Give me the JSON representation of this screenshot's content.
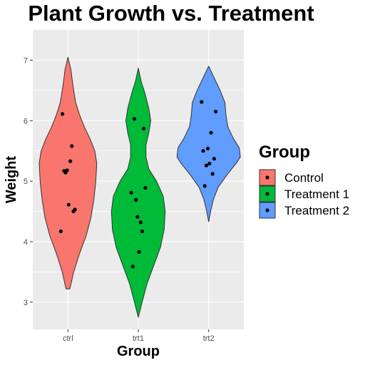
{
  "chart_data": {
    "type": "violin",
    "title": "Plant Growth vs. Treatment",
    "xlabel": "Group",
    "ylabel": "Weight",
    "ylim": [
      2.55,
      7.5
    ],
    "yticks": [
      3,
      4,
      5,
      6,
      7
    ],
    "grid": true,
    "legend": {
      "title": "Group",
      "placement": "right",
      "entries": [
        "Control",
        "Treatment 1",
        "Treatment 2"
      ]
    },
    "categories": [
      "ctrl",
      "trt1",
      "trt2"
    ],
    "series": [
      {
        "category": "ctrl",
        "name": "Control",
        "color": "#F8766D",
        "range": [
          3.22,
          7.05
        ],
        "profile": [
          [
            3.22,
            0.02
          ],
          [
            3.5,
            0.06
          ],
          [
            3.8,
            0.12
          ],
          [
            4.1,
            0.19
          ],
          [
            4.4,
            0.24
          ],
          [
            4.7,
            0.27
          ],
          [
            5.0,
            0.29
          ],
          [
            5.3,
            0.3
          ],
          [
            5.5,
            0.28
          ],
          [
            5.7,
            0.23
          ],
          [
            5.9,
            0.17
          ],
          [
            6.1,
            0.12
          ],
          [
            6.3,
            0.08
          ],
          [
            6.6,
            0.05
          ],
          [
            6.85,
            0.03
          ],
          [
            7.05,
            0.0
          ]
        ],
        "values": [
          4.17,
          5.58,
          5.18,
          6.11,
          4.5,
          4.61,
          5.17,
          4.53,
          5.33,
          5.14
        ]
      },
      {
        "category": "trt1",
        "name": "Treatment 1",
        "color": "#00BA38",
        "range": [
          2.75,
          6.87
        ],
        "profile": [
          [
            2.75,
            0.0
          ],
          [
            3.0,
            0.04
          ],
          [
            3.3,
            0.09
          ],
          [
            3.6,
            0.16
          ],
          [
            3.9,
            0.23
          ],
          [
            4.2,
            0.27
          ],
          [
            4.5,
            0.28
          ],
          [
            4.75,
            0.26
          ],
          [
            5.0,
            0.19
          ],
          [
            5.2,
            0.11
          ],
          [
            5.4,
            0.08
          ],
          [
            5.6,
            0.08
          ],
          [
            5.8,
            0.11
          ],
          [
            6.0,
            0.13
          ],
          [
            6.2,
            0.11
          ],
          [
            6.45,
            0.07
          ],
          [
            6.65,
            0.03
          ],
          [
            6.87,
            0.0
          ]
        ],
        "values": [
          4.81,
          4.17,
          4.41,
          3.59,
          5.87,
          3.83,
          6.03,
          4.89,
          4.32,
          4.69
        ]
      },
      {
        "category": "trt2",
        "name": "Treatment 2",
        "color": "#619CFF",
        "range": [
          4.33,
          6.9
        ],
        "profile": [
          [
            4.33,
            0.0
          ],
          [
            4.5,
            0.02
          ],
          [
            4.7,
            0.05
          ],
          [
            4.9,
            0.1
          ],
          [
            5.1,
            0.19
          ],
          [
            5.3,
            0.29
          ],
          [
            5.4,
            0.33
          ],
          [
            5.55,
            0.32
          ],
          [
            5.7,
            0.26
          ],
          [
            5.9,
            0.2
          ],
          [
            6.1,
            0.18
          ],
          [
            6.3,
            0.17
          ],
          [
            6.5,
            0.12
          ],
          [
            6.7,
            0.06
          ],
          [
            6.9,
            0.0
          ]
        ],
        "values": [
          6.31,
          5.12,
          5.54,
          5.5,
          5.37,
          5.29,
          4.92,
          6.15,
          5.8,
          5.26
        ]
      }
    ]
  }
}
